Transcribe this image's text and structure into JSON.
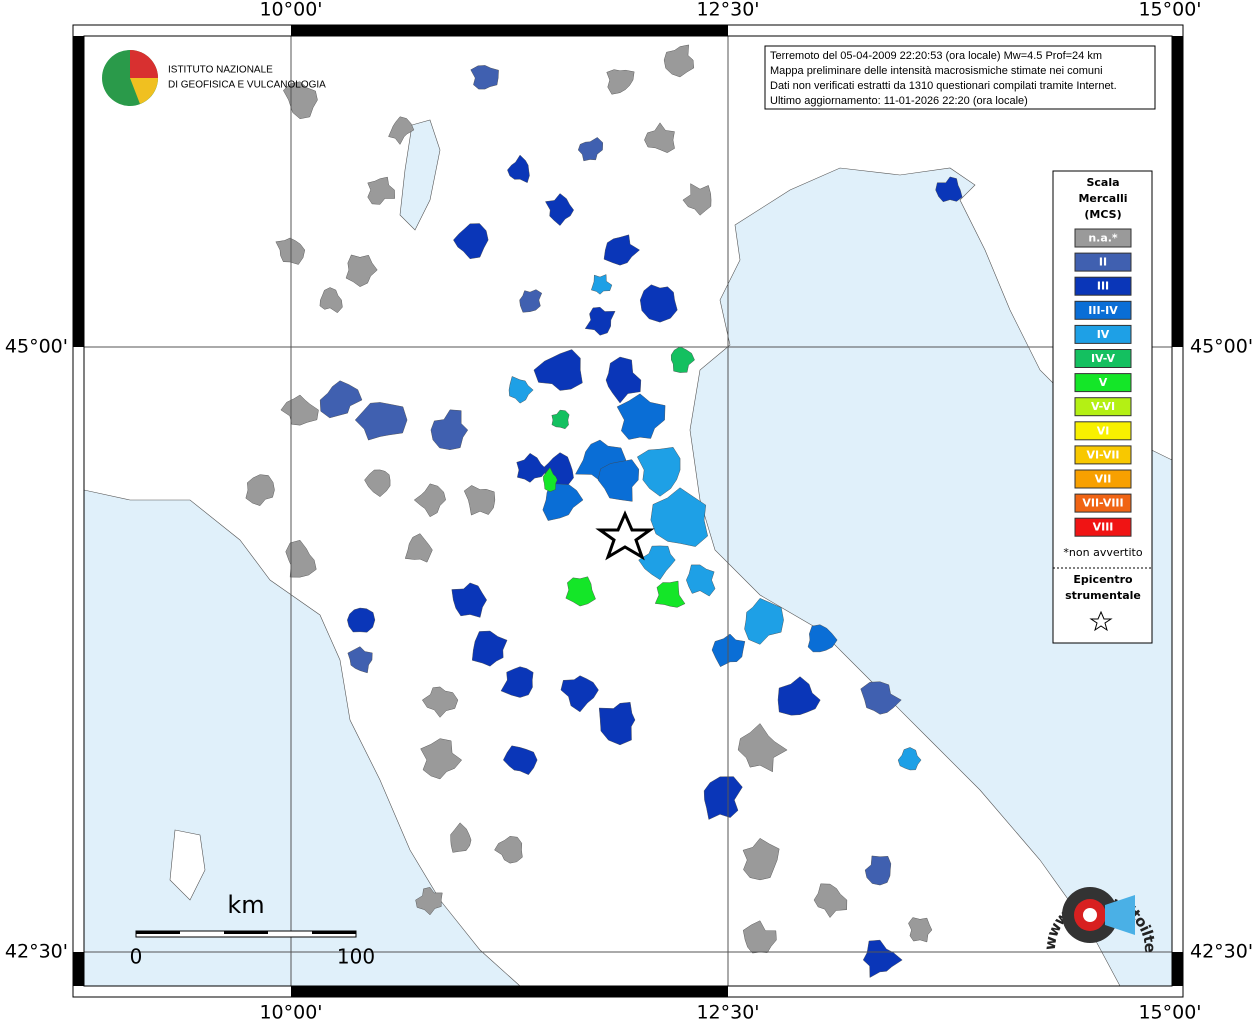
{
  "frame": {
    "top_labels": [
      "10°00'",
      "12°30'",
      "15°00'"
    ],
    "bottom_labels": [
      "10°00'",
      "12°30'",
      "15°00'"
    ],
    "left_labels": [
      "45°00'",
      "42°30'"
    ],
    "right_labels": [
      "45°00'",
      "42°30'"
    ]
  },
  "logo": {
    "line1": "ISTITUTO NAZIONALE",
    "line2": "DI GEOFISICA E VULCANOLOGIA"
  },
  "info_box": {
    "lines": [
      "Terremoto del 05-04-2009 22:20:53 (ora locale) Mw=4.5 Prof=24 km",
      "Mappa preliminare delle intensità macrosismiche stimate nei comuni",
      "Dati non verificati estratti da 1310 questionari compilati tramite Internet.",
      "Ultimo aggiornamento: 11-01-2026 22:20 (ora locale)"
    ]
  },
  "legend": {
    "title_lines": [
      "Scala",
      "Mercalli",
      "(MCS)"
    ],
    "items": [
      {
        "label": "n.a.*",
        "color": "#9a9a9a"
      },
      {
        "label": "II",
        "color": "#4060b0"
      },
      {
        "label": "III",
        "color": "#0a36b8"
      },
      {
        "label": "III-IV",
        "color": "#0a6ed6"
      },
      {
        "label": "IV",
        "color": "#1ea0e6"
      },
      {
        "label": "IV-V",
        "color": "#14c060"
      },
      {
        "label": "V",
        "color": "#14e628"
      },
      {
        "label": "V-VI",
        "color": "#b4f014"
      },
      {
        "label": "VI",
        "color": "#f8f000"
      },
      {
        "label": "VI-VII",
        "color": "#f8c800"
      },
      {
        "label": "VII",
        "color": "#f8a000"
      },
      {
        "label": "VII-VIII",
        "color": "#f06414"
      },
      {
        "label": "VIII",
        "color": "#f01414"
      }
    ],
    "note": "*non avvertito",
    "epicenter_lines": [
      "Epicentro",
      "strumentale"
    ]
  },
  "scale_bar": {
    "unit": "km",
    "labels": [
      "0",
      "100"
    ]
  },
  "brand": {
    "text": "www.haisentitoilterremoto.it"
  }
}
